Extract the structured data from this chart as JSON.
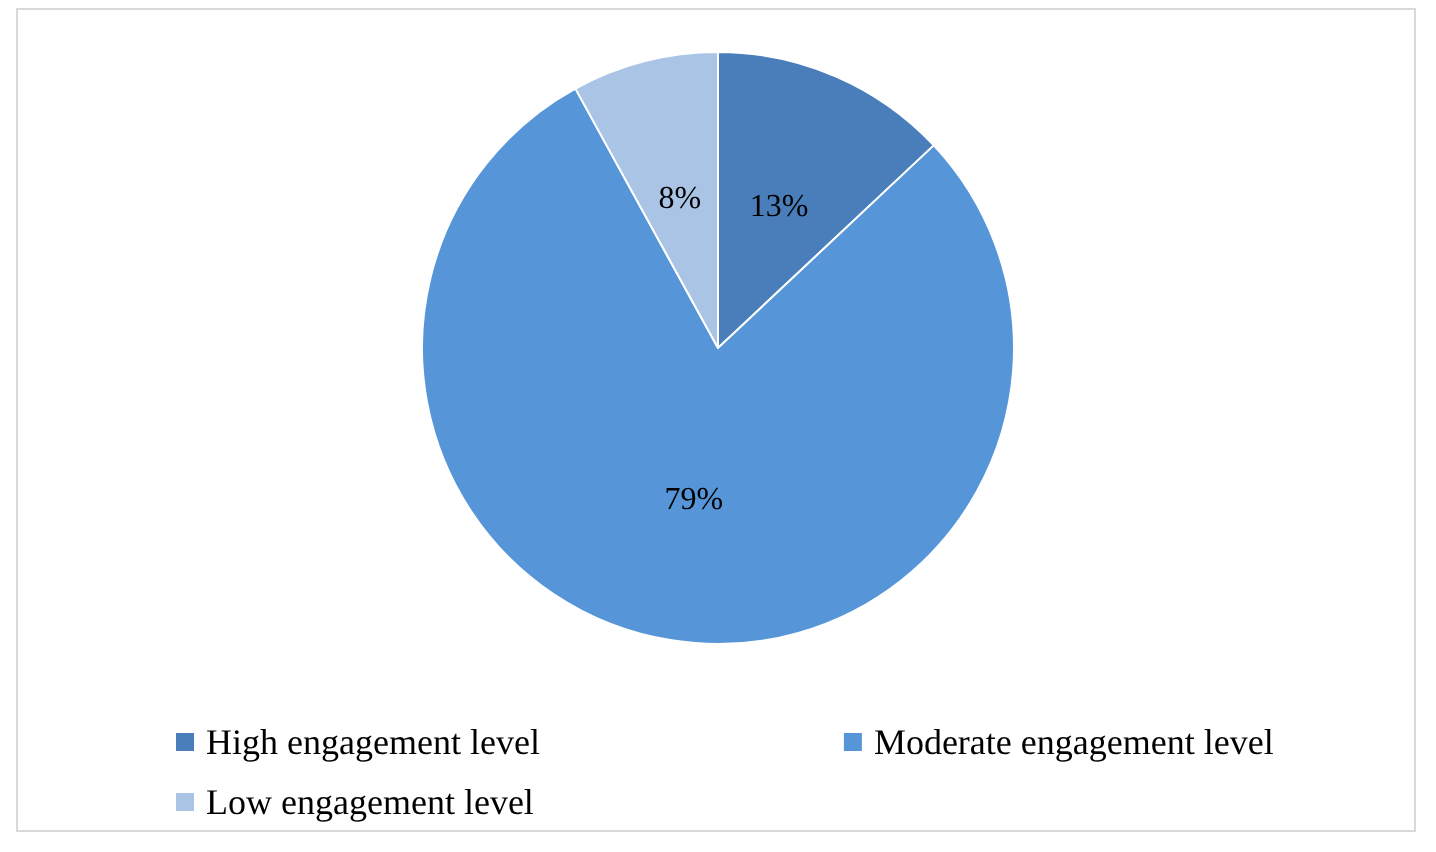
{
  "chart_data": {
    "type": "pie",
    "categories": [
      "High engagement level",
      "Moderate engagement level",
      "Low engagement level"
    ],
    "values": [
      13,
      79,
      8
    ],
    "value_labels": [
      "13%",
      "79%",
      "8%"
    ],
    "colors": [
      "#4a7ebb",
      "#5696d8",
      "#aac4e6"
    ],
    "legend": "bottom"
  }
}
